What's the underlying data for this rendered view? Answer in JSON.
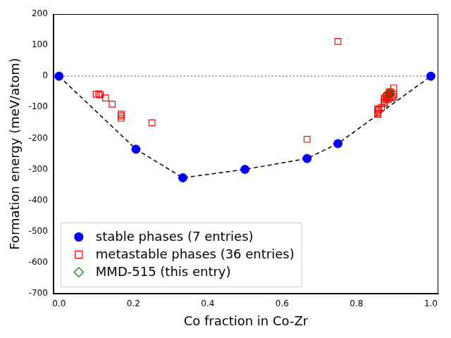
{
  "chart_data": {
    "type": "scatter",
    "x_label": "Co fraction in Co-Zr",
    "y_label": "Formation energy (meV/atom)",
    "xlim": [
      -0.015,
      1.02
    ],
    "xticks": [
      {
        "value": 0,
        "label": "0.0"
      },
      0.2,
      0.4,
      0.6,
      0.8,
      {
        "value": 1,
        "label": "1.0"
      }
    ],
    "ylim": [
      -700,
      200
    ],
    "yticks": [
      -700,
      -600,
      -500,
      -400,
      -300,
      -200,
      -100,
      0,
      100,
      200
    ],
    "grid": false,
    "legend": "lower left",
    "hlines": [
      0
    ],
    "series": [
      {
        "name": "stable phases (7 entries)",
        "color": "#0000ff",
        "marker": "circle",
        "line_style": "dashed",
        "x": [
          0,
          0.207,
          0.333,
          0.5,
          0.667,
          0.75,
          1
        ],
        "values": [
          0,
          -235,
          -327,
          -300,
          -265,
          -217,
          0
        ]
      },
      {
        "name": "metastable phases (36 entries)",
        "color": "#ff0000",
        "marker": "open square",
        "line_style": "none",
        "x": [
          0.1,
          0.107,
          0.111,
          0.125,
          0.143,
          0.167,
          0.167,
          0.167,
          0.25,
          0.667,
          0.75,
          0.857,
          0.857,
          0.857,
          0.857,
          0.86,
          0.867,
          0.875,
          0.875,
          0.875,
          0.875,
          0.875,
          0.88,
          0.88,
          0.882,
          0.885,
          0.886,
          0.889,
          0.889,
          0.889,
          0.89,
          0.893,
          0.895,
          0.9,
          0.9,
          0.9
        ],
        "values": [
          -58,
          -57,
          -60,
          -70,
          -90,
          -122,
          -128,
          -135,
          -150,
          -203,
          112,
          -105,
          -112,
          -118,
          -122,
          -108,
          -100,
          -70,
          -75,
          -80,
          -88,
          -85,
          -65,
          -72,
          -62,
          -75,
          -58,
          -50,
          -55,
          -60,
          -68,
          -52,
          -70,
          -38,
          -58,
          -65
        ]
      },
      {
        "name": "MMD-515 (this entry)",
        "color": "#008000",
        "marker": "open diamond",
        "line_style": "none",
        "x": [
          0.889
        ],
        "values": [
          -55
        ]
      }
    ]
  }
}
